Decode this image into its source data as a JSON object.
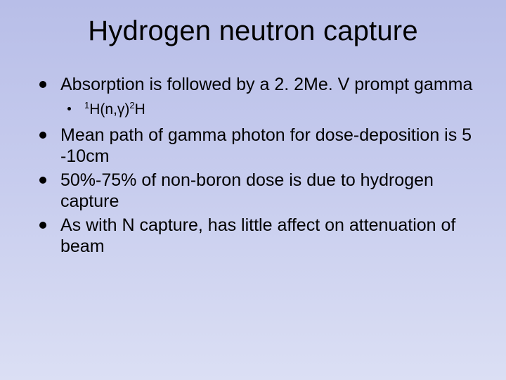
{
  "slide": {
    "background_gradient": [
      "#b8bee8",
      "#c8cdee",
      "#dbdff4"
    ],
    "text_color": "#000000",
    "title": "Hydrogen neutron capture",
    "title_fontsize": 40,
    "body_fontsize": 25,
    "sub_fontsize": 21,
    "bullet_color": "#000000",
    "bullets": [
      {
        "text": "Absorption is followed by a 2. 2Me. V prompt gamma",
        "sub": [
          {
            "html": "<span class=\"sup\">1</span>H(n,γ)<span class=\"sup\">2</span>H"
          }
        ]
      },
      {
        "text": "Mean path of gamma photon for dose-deposition is 5 -10cm"
      },
      {
        "text": "50%-75% of non-boron dose is due to hydrogen capture"
      },
      {
        "text": "As with N capture, has little affect on attenuation of beam"
      }
    ]
  }
}
